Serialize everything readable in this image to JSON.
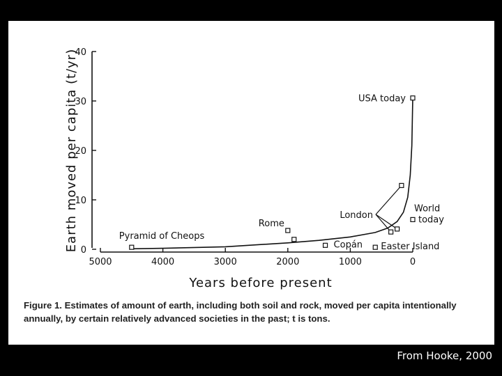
{
  "chart_data": {
    "type": "scatter",
    "title": "",
    "xlabel": "Years before present",
    "ylabel": "Earth moved per capita (t/yr)",
    "xlim": [
      5000,
      0
    ],
    "ylim": [
      0,
      40
    ],
    "x_ticks": [
      5000,
      4000,
      3000,
      2000,
      1000,
      0
    ],
    "y_ticks": [
      0,
      10,
      20,
      30,
      40
    ],
    "grid": false,
    "points": [
      {
        "name": "Pyramid of Cheops",
        "x": 4500,
        "y": 0.4
      },
      {
        "name": "Rome",
        "x": 2000,
        "y": 3.8
      },
      {
        "name": "",
        "x": 1900,
        "y": 2.0
      },
      {
        "name": "Copán",
        "x": 1400,
        "y": 0.8
      },
      {
        "name": "Easter Island",
        "x": 600,
        "y": 0.4
      },
      {
        "name": "",
        "x": 350,
        "y": 3.5
      },
      {
        "name": "",
        "x": 250,
        "y": 4.1
      },
      {
        "name": "",
        "x": 180,
        "y": 12.9
      },
      {
        "name": "World today",
        "x": 0,
        "y": 6.0
      },
      {
        "name": "USA today",
        "x": 0,
        "y": 30.6
      }
    ],
    "trend_curve": [
      {
        "x": 4500,
        "y": 0.1
      },
      {
        "x": 4000,
        "y": 0.2
      },
      {
        "x": 3000,
        "y": 0.5
      },
      {
        "x": 2000,
        "y": 1.3
      },
      {
        "x": 1500,
        "y": 1.8
      },
      {
        "x": 1000,
        "y": 2.5
      },
      {
        "x": 600,
        "y": 3.4
      },
      {
        "x": 400,
        "y": 4.3
      },
      {
        "x": 250,
        "y": 5.6
      },
      {
        "x": 150,
        "y": 7.5
      },
      {
        "x": 80,
        "y": 10.5
      },
      {
        "x": 40,
        "y": 15.0
      },
      {
        "x": 15,
        "y": 21.0
      },
      {
        "x": 0,
        "y": 30.6
      }
    ],
    "annotations": [
      {
        "text": "London",
        "targets": [
          {
            "x": 350,
            "y": 3.5
          },
          {
            "x": 250,
            "y": 4.1
          },
          {
            "x": 180,
            "y": 12.9
          }
        ]
      }
    ]
  },
  "caption": "Figure 1. Estimates of amount of earth, including both soil and rock, moved per capita intentionally annually, by certain relatively advanced societies in the past; t is tons.",
  "credit": "From Hooke, 2000"
}
